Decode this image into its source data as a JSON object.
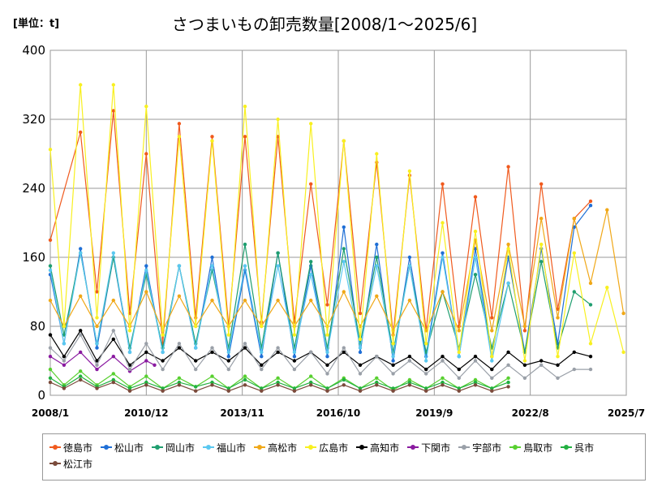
{
  "unit_label": "[単位：t]",
  "title": "さつまいもの卸売数量[2008/1～2025/6]",
  "chart_data": {
    "type": "line",
    "title": "さつまいもの卸売数量[2008/1～2025/6]",
    "ylabel": "[単位：t]",
    "ylim": [
      0,
      400
    ],
    "yticks": [
      0,
      80,
      160,
      240,
      320,
      400
    ],
    "xlim": [
      "2008/1",
      "2025/7"
    ],
    "xticks": [
      "2008/1",
      "2010/12",
      "2013/11",
      "2016/10",
      "2019/9",
      "2022/8",
      "2025/7"
    ],
    "grid": true,
    "legend_position": "bottom",
    "series": [
      {
        "name": "徳島市",
        "color": "#f05a1e",
        "x": [
          "2008/1",
          "2008/12",
          "2009/6",
          "2009/12",
          "2010/6",
          "2010/12",
          "2011/6",
          "2011/12",
          "2012/6",
          "2012/12",
          "2013/6",
          "2013/12",
          "2014/6",
          "2014/12",
          "2015/6",
          "2015/12",
          "2016/6",
          "2016/12",
          "2017/6",
          "2017/12",
          "2018/6",
          "2018/12",
          "2019/6",
          "2019/12",
          "2020/6",
          "2020/12",
          "2021/6",
          "2021/12",
          "2022/6",
          "2022/12",
          "2023/6",
          "2023/12",
          "2024/6"
        ],
        "values": [
          180,
          305,
          120,
          330,
          95,
          280,
          60,
          315,
          90,
          300,
          80,
          300,
          85,
          300,
          85,
          245,
          105,
          295,
          95,
          270,
          70,
          255,
          75,
          245,
          80,
          230,
          90,
          265,
          75,
          245,
          100,
          205,
          225
        ]
      },
      {
        "name": "松山市",
        "color": "#1f6fd6",
        "x": [
          "2008/1",
          "2008/6",
          "2008/12",
          "2009/6",
          "2009/12",
          "2010/6",
          "2010/12",
          "2011/6",
          "2011/12",
          "2012/6",
          "2012/12",
          "2013/6",
          "2013/12",
          "2014/6",
          "2014/12",
          "2015/6",
          "2015/12",
          "2016/6",
          "2016/12",
          "2017/6",
          "2017/12",
          "2018/6",
          "2018/12",
          "2019/6",
          "2019/12",
          "2020/6",
          "2020/12",
          "2021/6",
          "2021/12",
          "2022/6",
          "2022/12",
          "2023/6",
          "2023/12",
          "2024/6"
        ],
        "values": [
          140,
          60,
          170,
          55,
          160,
          50,
          150,
          50,
          150,
          55,
          160,
          45,
          145,
          45,
          165,
          45,
          150,
          45,
          195,
          50,
          175,
          40,
          160,
          45,
          165,
          45,
          170,
          45,
          160,
          50,
          170,
          60,
          195,
          220
        ]
      },
      {
        "name": "岡山市",
        "color": "#1f9e6f",
        "x": [
          "2008/1",
          "2008/6",
          "2008/12",
          "2009/6",
          "2009/12",
          "2010/6",
          "2010/12",
          "2011/6",
          "2011/12",
          "2012/6",
          "2012/12",
          "2013/6",
          "2013/12",
          "2014/6",
          "2014/12",
          "2015/6",
          "2015/12",
          "2016/6",
          "2016/12",
          "2017/6",
          "2017/12",
          "2018/6",
          "2018/12",
          "2019/6",
          "2019/12",
          "2020/6",
          "2020/12",
          "2021/6",
          "2021/12",
          "2022/6",
          "2022/12",
          "2023/6",
          "2023/12",
          "2024/6"
        ],
        "values": [
          150,
          70,
          165,
          60,
          160,
          55,
          140,
          55,
          150,
          60,
          145,
          55,
          175,
          55,
          165,
          55,
          155,
          55,
          170,
          60,
          160,
          50,
          150,
          50,
          120,
          55,
          140,
          55,
          130,
          50,
          155,
          55,
          120,
          105
        ]
      },
      {
        "name": "福山市",
        "color": "#5ac8f0",
        "x": [
          "2008/1",
          "2008/6",
          "2008/12",
          "2009/6",
          "2009/12",
          "2010/6",
          "2010/12",
          "2011/6",
          "2011/12",
          "2012/6",
          "2012/12",
          "2013/6",
          "2013/12",
          "2014/6",
          "2014/12",
          "2015/6",
          "2015/12",
          "2016/6",
          "2016/12",
          "2017/6",
          "2017/12",
          "2018/6",
          "2018/12",
          "2019/6",
          "2019/12",
          "2020/6",
          "2020/12",
          "2021/6",
          "2021/12"
        ],
        "values": [
          145,
          60,
          165,
          60,
          165,
          50,
          145,
          50,
          150,
          55,
          150,
          50,
          150,
          50,
          150,
          50,
          140,
          50,
          155,
          55,
          150,
          45,
          150,
          40,
          160,
          45,
          160,
          40,
          130
        ]
      },
      {
        "name": "高松市",
        "color": "#f0a818",
        "x": [
          "2008/1",
          "2008/6",
          "2008/12",
          "2009/6",
          "2009/12",
          "2010/6",
          "2010/12",
          "2011/6",
          "2011/12",
          "2012/6",
          "2012/12",
          "2013/6",
          "2013/12",
          "2014/6",
          "2014/12",
          "2015/6",
          "2015/12",
          "2016/6",
          "2016/12",
          "2017/6",
          "2017/12",
          "2018/6",
          "2018/12",
          "2019/6",
          "2019/12",
          "2020/6",
          "2020/12",
          "2021/6",
          "2021/12",
          "2022/6",
          "2022/12",
          "2023/6",
          "2023/12",
          "2024/6",
          "2024/12",
          "2025/6"
        ],
        "values": [
          110,
          80,
          115,
          80,
          110,
          80,
          120,
          75,
          115,
          80,
          110,
          80,
          110,
          80,
          110,
          80,
          110,
          80,
          120,
          80,
          115,
          75,
          110,
          75,
          120,
          75,
          180,
          75,
          175,
          80,
          205,
          90,
          205,
          130,
          215,
          95
        ]
      },
      {
        "name": "広島市",
        "color": "#f8f020",
        "x": [
          "2008/1",
          "2008/6",
          "2008/12",
          "2009/6",
          "2009/12",
          "2010/6",
          "2010/12",
          "2011/6",
          "2011/12",
          "2012/6",
          "2012/12",
          "2013/6",
          "2013/12",
          "2014/6",
          "2014/12",
          "2015/6",
          "2015/12",
          "2016/6",
          "2016/12",
          "2017/6",
          "2017/12",
          "2018/6",
          "2018/12",
          "2019/6",
          "2019/12",
          "2020/6",
          "2020/12",
          "2021/6",
          "2021/12",
          "2022/6",
          "2022/12",
          "2023/6",
          "2023/12",
          "2024/6",
          "2024/12",
          "2025/6"
        ],
        "values": [
          285,
          80,
          360,
          90,
          360,
          75,
          335,
          70,
          300,
          80,
          295,
          70,
          335,
          80,
          320,
          70,
          315,
          70,
          295,
          65,
          280,
          60,
          260,
          60,
          200,
          50,
          190,
          45,
          170,
          40,
          175,
          45,
          165,
          60,
          125,
          50
        ]
      },
      {
        "name": "高知市",
        "color": "#000000",
        "x": [
          "2008/1",
          "2008/6",
          "2008/12",
          "2009/6",
          "2009/12",
          "2010/6",
          "2010/12",
          "2011/6",
          "2011/12",
          "2012/6",
          "2012/12",
          "2013/6",
          "2013/12",
          "2014/6",
          "2014/12",
          "2015/6",
          "2015/12",
          "2016/6",
          "2016/12",
          "2017/6",
          "2017/12",
          "2018/6",
          "2018/12",
          "2019/6",
          "2019/12",
          "2020/6",
          "2020/12",
          "2021/6",
          "2021/12",
          "2022/6",
          "2022/12",
          "2023/6",
          "2023/12",
          "2024/6"
        ],
        "values": [
          70,
          45,
          75,
          40,
          65,
          35,
          50,
          40,
          55,
          40,
          50,
          40,
          55,
          35,
          50,
          40,
          50,
          35,
          50,
          35,
          45,
          35,
          45,
          30,
          45,
          30,
          45,
          30,
          50,
          35,
          40,
          35,
          50,
          45
        ]
      },
      {
        "name": "下関市",
        "color": "#8a1aa0",
        "x": [
          "2008/1",
          "2008/6",
          "2008/12",
          "2009/6",
          "2009/12",
          "2010/6",
          "2010/12",
          "2011/3"
        ],
        "values": [
          45,
          35,
          50,
          30,
          45,
          28,
          40,
          35
        ]
      },
      {
        "name": "宇部市",
        "color": "#9aa0a8",
        "x": [
          "2008/1",
          "2008/6",
          "2008/12",
          "2009/6",
          "2009/12",
          "2010/6",
          "2010/12",
          "2011/6",
          "2011/12",
          "2012/6",
          "2012/12",
          "2013/6",
          "2013/12",
          "2014/6",
          "2014/12",
          "2015/6",
          "2015/12",
          "2016/6",
          "2016/12",
          "2017/6",
          "2017/12",
          "2018/6",
          "2018/12",
          "2019/6",
          "2019/12",
          "2020/6",
          "2020/12",
          "2021/6",
          "2021/12",
          "2022/6",
          "2022/12",
          "2023/6",
          "2023/12",
          "2024/6"
        ],
        "values": [
          55,
          40,
          70,
          35,
          75,
          30,
          60,
          30,
          60,
          30,
          55,
          30,
          60,
          30,
          55,
          30,
          50,
          25,
          55,
          25,
          45,
          25,
          40,
          25,
          40,
          20,
          40,
          20,
          35,
          20,
          35,
          20,
          30,
          30
        ]
      },
      {
        "name": "鳥取市",
        "color": "#58d030",
        "x": [
          "2008/1",
          "2008/6",
          "2008/12",
          "2009/6",
          "2009/12",
          "2010/6",
          "2010/12",
          "2011/6",
          "2011/12",
          "2012/6",
          "2012/12",
          "2013/6",
          "2013/12",
          "2014/6",
          "2014/12",
          "2015/6",
          "2015/12",
          "2016/6",
          "2016/12",
          "2017/6",
          "2017/12",
          "2018/6",
          "2018/12",
          "2019/6",
          "2019/12",
          "2020/6",
          "2020/12",
          "2021/6",
          "2021/12"
        ],
        "values": [
          30,
          12,
          28,
          12,
          25,
          10,
          22,
          8,
          20,
          10,
          22,
          8,
          22,
          8,
          20,
          8,
          22,
          8,
          20,
          8,
          20,
          6,
          18,
          8,
          20,
          8,
          18,
          8,
          20
        ]
      },
      {
        "name": "呉市",
        "color": "#22b040",
        "x": [
          "2008/1",
          "2008/6",
          "2008/12",
          "2009/6",
          "2009/12",
          "2010/6",
          "2010/12",
          "2011/6",
          "2011/12",
          "2012/6",
          "2012/12",
          "2013/6",
          "2013/12",
          "2014/6",
          "2014/12",
          "2015/6",
          "2015/12",
          "2016/6",
          "2016/12",
          "2017/6",
          "2017/12",
          "2018/6",
          "2018/12",
          "2019/6",
          "2019/12",
          "2020/6",
          "2020/12",
          "2021/6",
          "2021/12"
        ],
        "values": [
          20,
          10,
          22,
          10,
          18,
          8,
          15,
          8,
          15,
          10,
          15,
          8,
          18,
          8,
          15,
          8,
          15,
          8,
          18,
          8,
          15,
          8,
          15,
          8,
          15,
          8,
          15,
          8,
          15
        ]
      },
      {
        "name": "松江市",
        "color": "#7a4a3a",
        "x": [
          "2008/1",
          "2008/6",
          "2008/12",
          "2009/6",
          "2009/12",
          "2010/6",
          "2010/12",
          "2011/6",
          "2011/12",
          "2012/6",
          "2012/12",
          "2013/6",
          "2013/12",
          "2014/6",
          "2014/12",
          "2015/6",
          "2015/12",
          "2016/6",
          "2016/12",
          "2017/6",
          "2017/12",
          "2018/6",
          "2018/12",
          "2019/6",
          "2019/12",
          "2020/6",
          "2020/12",
          "2021/6",
          "2021/12"
        ],
        "values": [
          15,
          8,
          18,
          8,
          15,
          5,
          12,
          5,
          12,
          5,
          12,
          5,
          12,
          5,
          12,
          5,
          12,
          5,
          12,
          5,
          12,
          5,
          12,
          5,
          12,
          5,
          12,
          5,
          10
        ]
      }
    ]
  }
}
